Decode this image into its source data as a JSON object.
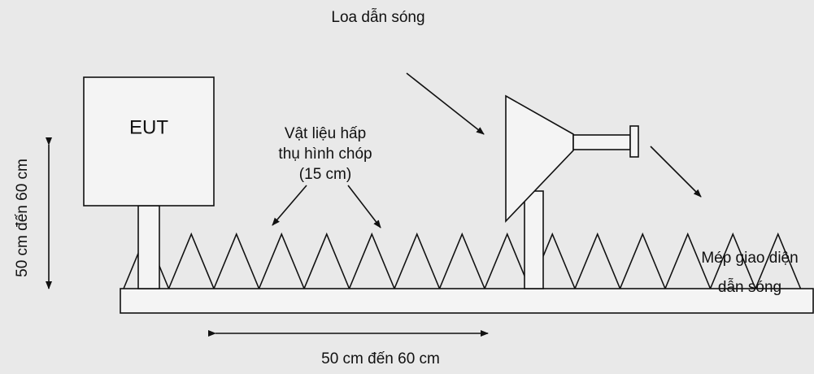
{
  "labels": {
    "horn": "Loa dẫn sóng",
    "eut": "EUT",
    "absorber": [
      "Vật liệu hấp",
      "thụ hình chóp",
      "(15 cm)"
    ],
    "height": "50 cm đến 60 cm",
    "flange": [
      "Mép giao diện",
      "dẫn sóng"
    ],
    "distance": "50 cm đến 60 cm"
  }
}
